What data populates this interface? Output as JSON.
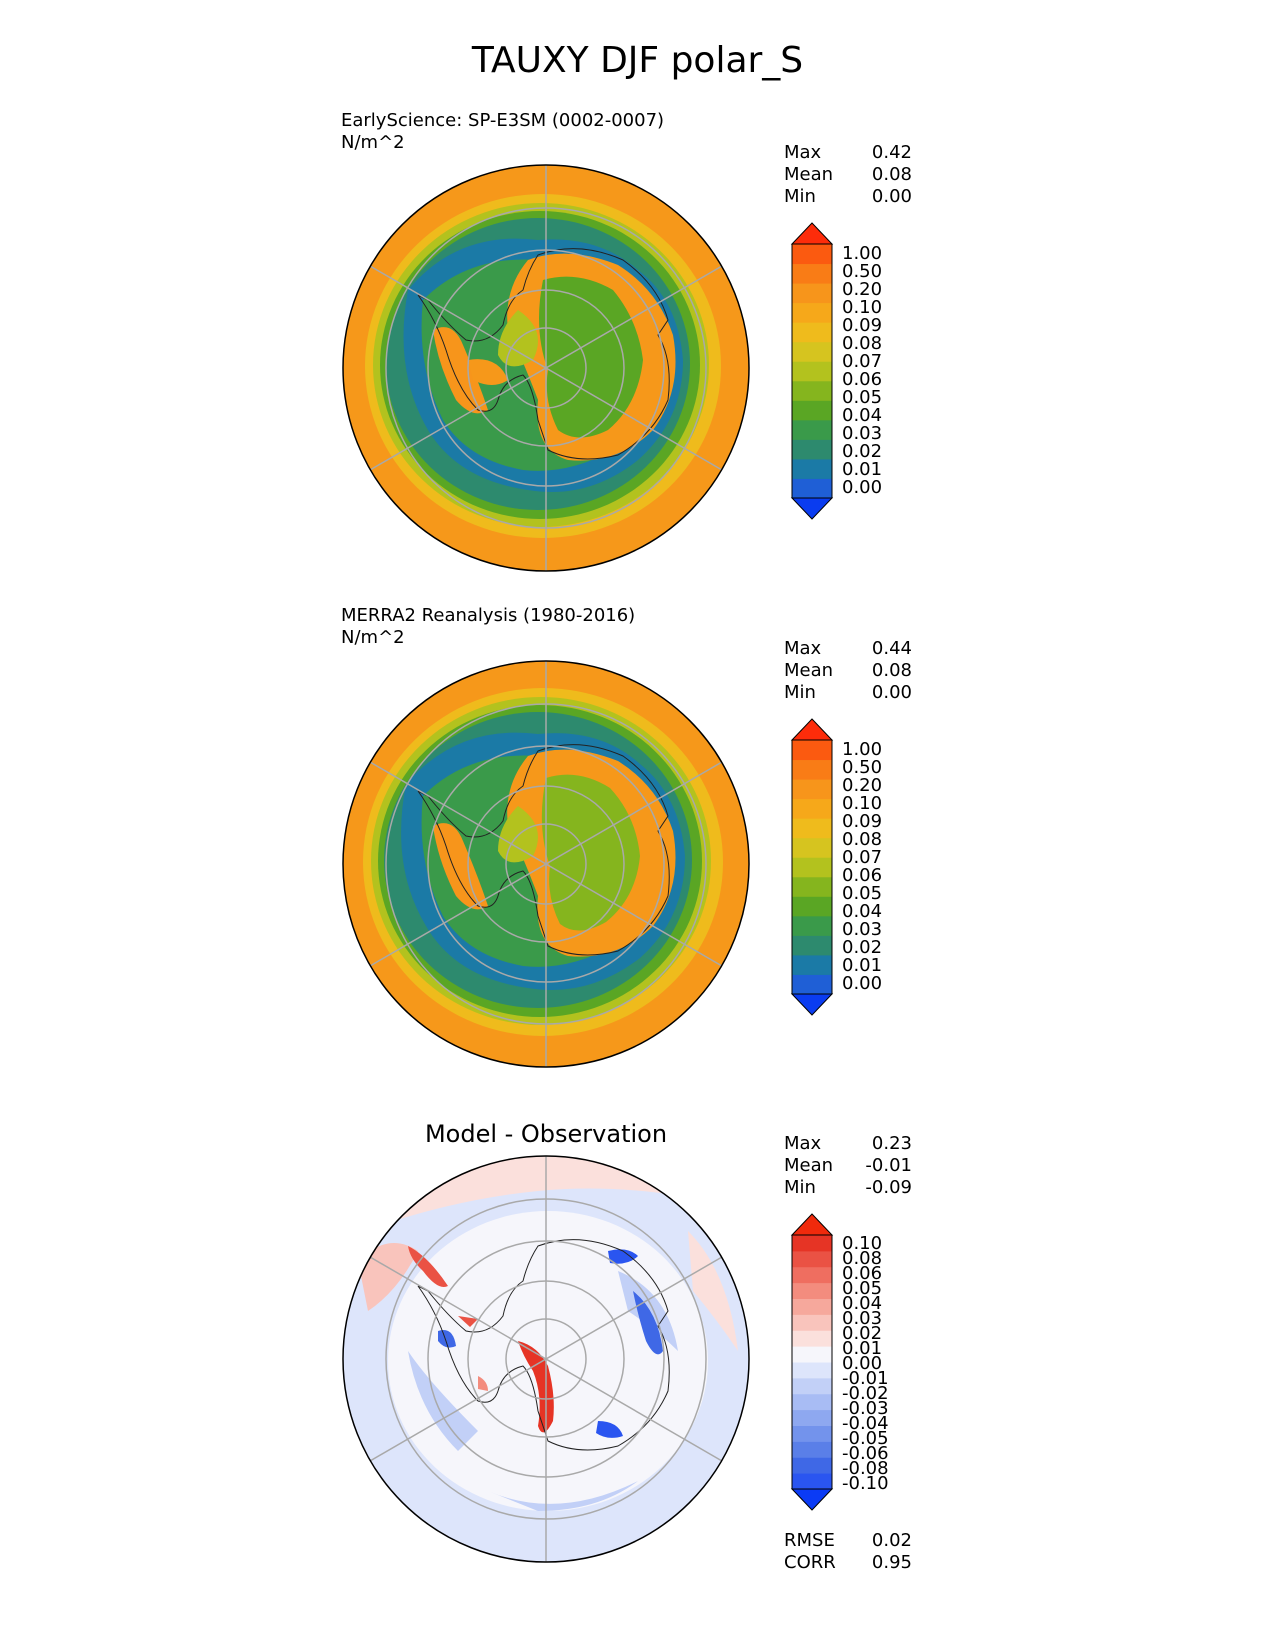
{
  "title": "TAUXY DJF polar_S",
  "panels": [
    {
      "id": "test",
      "title_line1": "EarlyScience: SP-E3SM (0002-0007)",
      "units": "N/m^2",
      "stats": [
        {
          "label": "Max",
          "value": "0.42"
        },
        {
          "label": "Mean",
          "value": "0.08"
        },
        {
          "label": "Min",
          "value": "0.00"
        }
      ],
      "colorbar": {
        "ticks": [
          "1.00",
          "0.50",
          "0.20",
          "0.10",
          "0.09",
          "0.08",
          "0.07",
          "0.06",
          "0.05",
          "0.04",
          "0.03",
          "0.02",
          "0.01",
          "0.00"
        ],
        "colors": [
          "#0a3cf0",
          "#1f5fd6",
          "#1b7aa6",
          "#2d8a6e",
          "#3a9a4a",
          "#5aa624",
          "#85b51e",
          "#b3c21e",
          "#d6c41f",
          "#efbb1c",
          "#f6a81a",
          "#f7951b",
          "#f97c16",
          "#fb5a10",
          "#fd2c0a"
        ]
      }
    },
    {
      "id": "reference",
      "title_line1": "MERRA2 Reanalysis (1980-2016)",
      "units": "N/m^2",
      "stats": [
        {
          "label": "Max",
          "value": "0.44"
        },
        {
          "label": "Mean",
          "value": "0.08"
        },
        {
          "label": "Min",
          "value": "0.00"
        }
      ],
      "colorbar": {
        "ticks": [
          "1.00",
          "0.50",
          "0.20",
          "0.10",
          "0.09",
          "0.08",
          "0.07",
          "0.06",
          "0.05",
          "0.04",
          "0.03",
          "0.02",
          "0.01",
          "0.00"
        ],
        "colors": [
          "#0a3cf0",
          "#1f5fd6",
          "#1b7aa6",
          "#2d8a6e",
          "#3a9a4a",
          "#5aa624",
          "#85b51e",
          "#b3c21e",
          "#d6c41f",
          "#efbb1c",
          "#f6a81a",
          "#f7951b",
          "#f97c16",
          "#fb5a10",
          "#fd2c0a"
        ]
      }
    },
    {
      "id": "diff",
      "title_center": "Model - Observation",
      "stats": [
        {
          "label": "Max",
          "value": "0.23"
        },
        {
          "label": "Mean",
          "value": "-0.01"
        },
        {
          "label": "Min",
          "value": "-0.09"
        }
      ],
      "metrics": [
        {
          "label": "RMSE",
          "value": "0.02"
        },
        {
          "label": "CORR",
          "value": "0.95"
        }
      ],
      "colorbar": {
        "ticks": [
          "0.10",
          "0.08",
          "0.06",
          "0.05",
          "0.04",
          "0.03",
          "0.02",
          "0.01",
          "0.00",
          "-0.01",
          "-0.02",
          "-0.03",
          "-0.04",
          "-0.05",
          "-0.06",
          "-0.08",
          "-0.10"
        ],
        "colors": [
          "#0b3bf5",
          "#2a55f0",
          "#3f68e6",
          "#5a7fe8",
          "#7393ec",
          "#8ea8f0",
          "#a8bcf4",
          "#c2d0f7",
          "#dde5fb",
          "#f6f6fb",
          "#fbe0dc",
          "#f9c4bc",
          "#f6a89c",
          "#f38c7e",
          "#ef6e60",
          "#ea5244",
          "#e63425",
          "#f02a0c"
        ]
      }
    }
  ],
  "chart_data": [
    {
      "type": "heatmap",
      "projection": "south polar stereographic",
      "title": "EarlyScience: SP-E3SM (0002-0007)",
      "units": "N/m^2",
      "max": 0.42,
      "mean": 0.08,
      "min": 0.0,
      "levels": [
        0.0,
        0.01,
        0.02,
        0.03,
        0.04,
        0.05,
        0.06,
        0.07,
        0.08,
        0.09,
        0.1,
        0.2,
        0.5,
        1.0
      ]
    },
    {
      "type": "heatmap",
      "projection": "south polar stereographic",
      "title": "MERRA2 Reanalysis (1980-2016)",
      "units": "N/m^2",
      "max": 0.44,
      "mean": 0.08,
      "min": 0.0,
      "levels": [
        0.0,
        0.01,
        0.02,
        0.03,
        0.04,
        0.05,
        0.06,
        0.07,
        0.08,
        0.09,
        0.1,
        0.2,
        0.5,
        1.0
      ]
    },
    {
      "type": "heatmap",
      "projection": "south polar stereographic",
      "title": "Model - Observation",
      "max": 0.23,
      "mean": -0.01,
      "min": -0.09,
      "rmse": 0.02,
      "corr": 0.95,
      "levels": [
        -0.1,
        -0.08,
        -0.06,
        -0.05,
        -0.04,
        -0.03,
        -0.02,
        -0.01,
        0.0,
        0.01,
        0.02,
        0.03,
        0.04,
        0.05,
        0.06,
        0.08,
        0.1
      ]
    }
  ]
}
